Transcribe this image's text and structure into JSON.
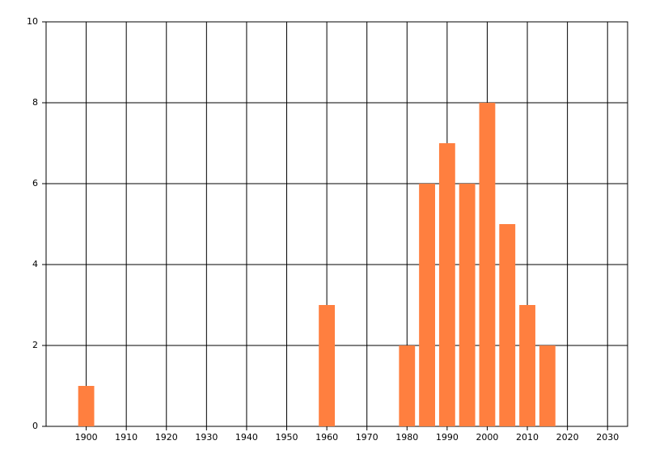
{
  "chart_data": {
    "type": "bar",
    "x": [
      1900,
      1960,
      1980,
      1985,
      1990,
      1995,
      2000,
      2005,
      2010,
      2015
    ],
    "values": [
      1,
      3,
      2,
      6,
      7,
      6,
      8,
      5,
      3,
      2
    ],
    "color": "#ff7f3f",
    "bar_width": 4,
    "xlim": [
      1890,
      2035
    ],
    "xticks": [
      1900,
      1910,
      1920,
      1930,
      1940,
      1950,
      1960,
      1970,
      1980,
      1990,
      2000,
      2010,
      2020,
      2030
    ],
    "ylim": [
      0,
      10
    ],
    "yticks": [
      0,
      2,
      4,
      6,
      8,
      10
    ],
    "grid": true
  }
}
